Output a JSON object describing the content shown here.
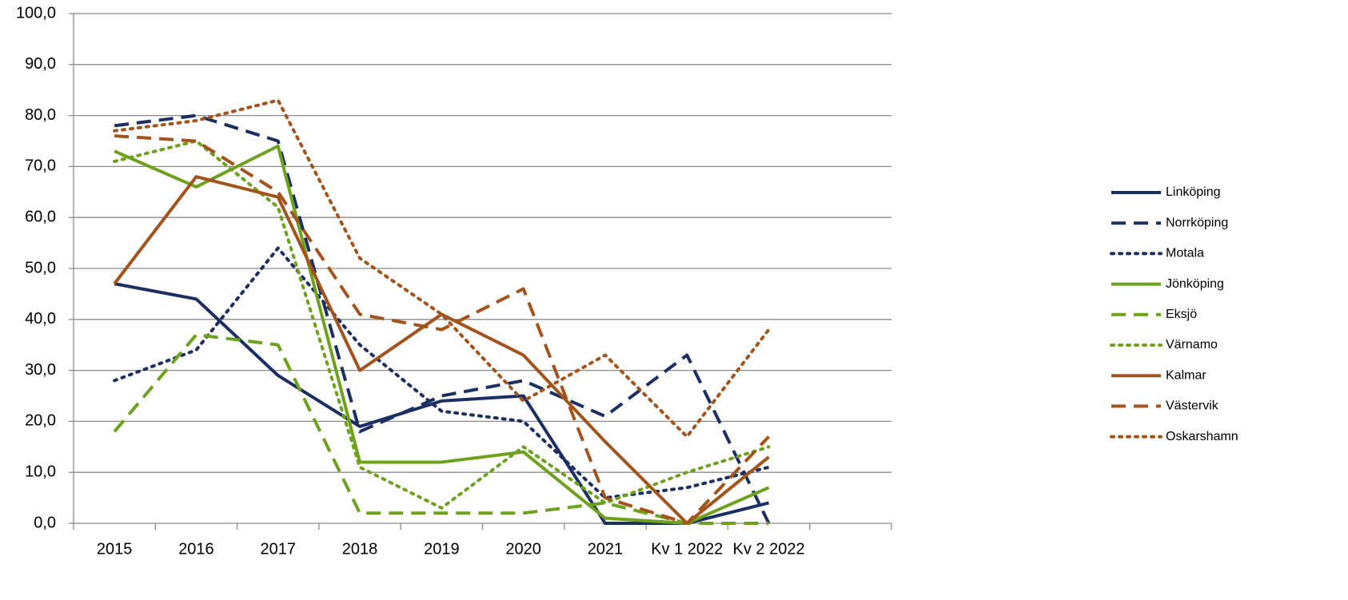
{
  "chart_data": {
    "type": "line",
    "categories": [
      "2015",
      "2016",
      "2017",
      "2018",
      "2019",
      "2020",
      "2021",
      "Kv 1 2022",
      "Kv 2 2022",
      null
    ],
    "ylim": [
      0,
      100
    ],
    "yticks": [
      {
        "value": 0,
        "label": "0,0"
      },
      {
        "value": 10,
        "label": "10,0"
      },
      {
        "value": 20,
        "label": "20,0"
      },
      {
        "value": 30,
        "label": "30,0"
      },
      {
        "value": 40,
        "label": "40,0"
      },
      {
        "value": 50,
        "label": "50,0"
      },
      {
        "value": 60,
        "label": "60,0"
      },
      {
        "value": 70,
        "label": "70,0"
      },
      {
        "value": 80,
        "label": "80,0"
      },
      {
        "value": 90,
        "label": "90,0"
      },
      {
        "value": 100,
        "label": "100,0"
      }
    ],
    "grid": true,
    "legend": "right",
    "series": [
      {
        "name": "Linköping",
        "color": "#1b2f63",
        "dash": "solid",
        "values": [
          47,
          44,
          29,
          19,
          24,
          25,
          0,
          0,
          4,
          null
        ]
      },
      {
        "name": "Norrköping",
        "color": "#1b2f63",
        "dash": "dashed",
        "values": [
          78,
          80,
          75,
          18,
          25,
          28,
          21,
          33,
          0,
          null
        ]
      },
      {
        "name": "Motala",
        "color": "#1b2f63",
        "dash": "dotted",
        "values": [
          28,
          34,
          54,
          35,
          22,
          20,
          5,
          7,
          11,
          null
        ]
      },
      {
        "name": "Jönköping",
        "color": "#6ea21e",
        "dash": "solid",
        "values": [
          73,
          66,
          74,
          12,
          12,
          14,
          1,
          0,
          7,
          null
        ]
      },
      {
        "name": "Eksjö",
        "color": "#6ea21e",
        "dash": "dashed",
        "values": [
          18,
          37,
          35,
          2,
          2,
          2,
          4,
          0,
          0,
          null
        ]
      },
      {
        "name": "Värnamo",
        "color": "#6ea21e",
        "dash": "dotted",
        "values": [
          71,
          75,
          62,
          11,
          3,
          15,
          4,
          10,
          15,
          null
        ]
      },
      {
        "name": "Kalmar",
        "color": "#a3531c",
        "dash": "solid",
        "values": [
          47,
          68,
          64,
          30,
          41,
          33,
          16,
          0,
          13,
          null
        ]
      },
      {
        "name": "Västervik",
        "color": "#a3531c",
        "dash": "dashed",
        "values": [
          76,
          75,
          65,
          41,
          38,
          46,
          5,
          0,
          17,
          null
        ]
      },
      {
        "name": "Oskarshamn",
        "color": "#a3531c",
        "dash": "dotted",
        "values": [
          77,
          79,
          83,
          52,
          41,
          24,
          33,
          17,
          38,
          null
        ]
      }
    ]
  }
}
